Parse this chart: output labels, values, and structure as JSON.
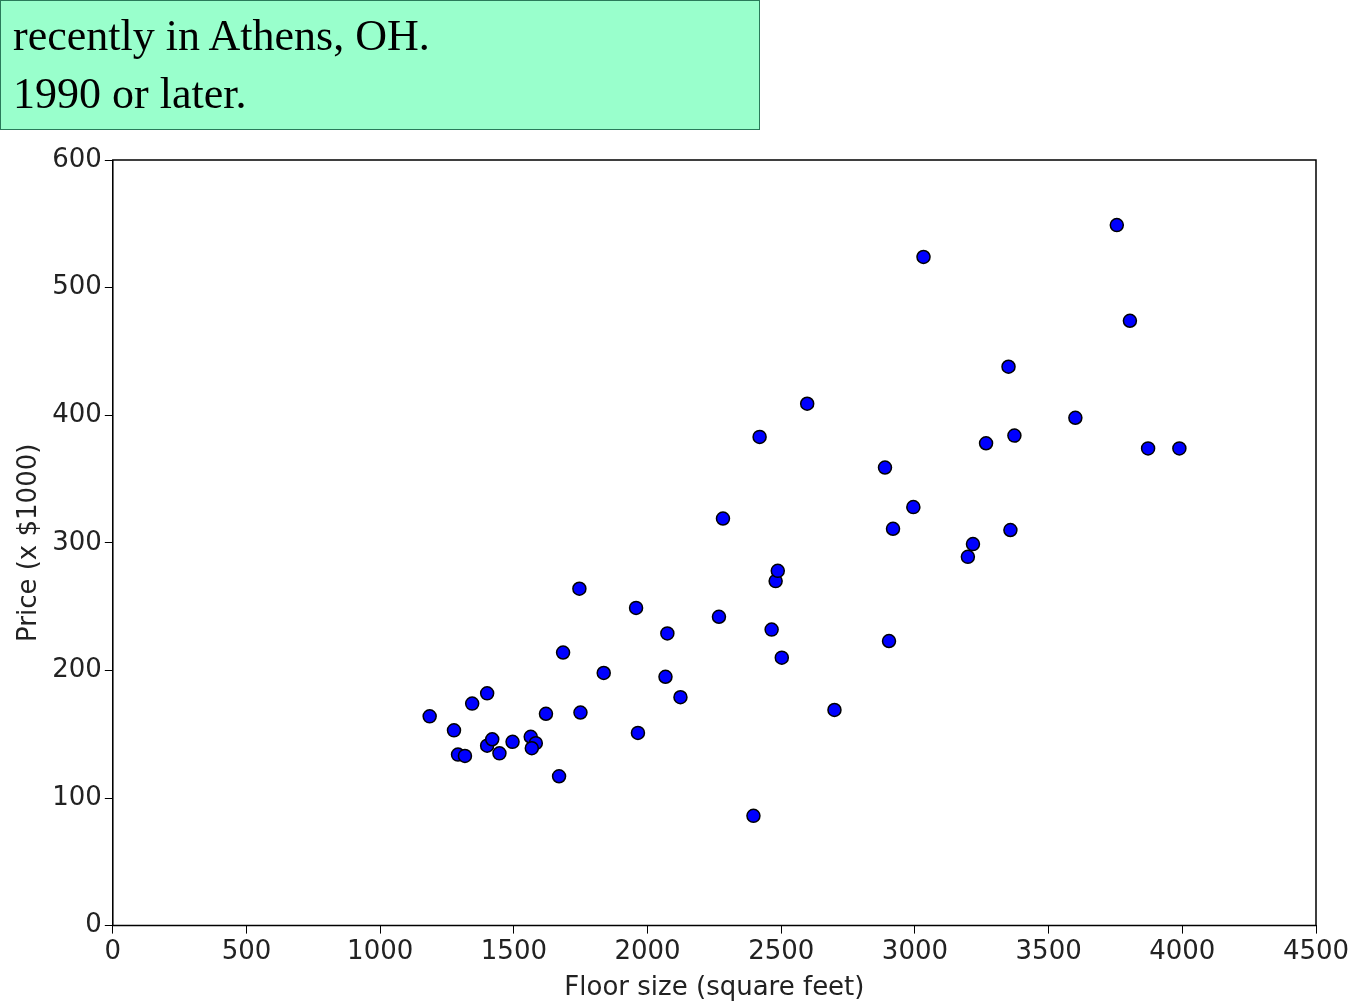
{
  "chart_data": {
    "type": "scatter",
    "xlabel": "Floor size (square feet)",
    "ylabel": "Price (x $1000)",
    "annotations": [
      "recently in Athens, OH.",
      "1990 or later."
    ],
    "x": [
      1185,
      1276,
      1291,
      1317,
      1344,
      1400,
      1400,
      1419,
      1446,
      1495,
      1563,
      1582,
      1567,
      1620,
      1669,
      1684,
      1745,
      1749,
      1836,
      1957,
      1964,
      2067,
      2074,
      2123,
      2267,
      2282,
      2396,
      2419,
      2464,
      2479,
      2487,
      2502,
      2597,
      2699,
      2888,
      2903,
      2918,
      2994,
      3032,
      3198,
      3217,
      3266,
      3350,
      3357,
      3372,
      3600,
      3755,
      3804,
      3872,
      3989
    ],
    "values": [
      164,
      153,
      134,
      133,
      174,
      182,
      141,
      146,
      135,
      144,
      148,
      143,
      139,
      166,
      117,
      214,
      264,
      167,
      198,
      249,
      151,
      195,
      229,
      179,
      242,
      319,
      86,
      383,
      232,
      270,
      278,
      210,
      409,
      169,
      359,
      223,
      311,
      328,
      524,
      289,
      299,
      378,
      438,
      310,
      384,
      398,
      549,
      474,
      374,
      374
    ],
    "color": "#0000ff",
    "marker": "circle",
    "xlim": [
      0,
      4500
    ],
    "xticks": [
      0,
      500,
      1000,
      1500,
      2000,
      2500,
      3000,
      3500,
      4000,
      4500
    ],
    "ylim": [
      0,
      600
    ],
    "yticks": [
      0,
      100,
      200,
      300,
      400,
      500,
      600
    ],
    "grid": false,
    "legend": false
  }
}
